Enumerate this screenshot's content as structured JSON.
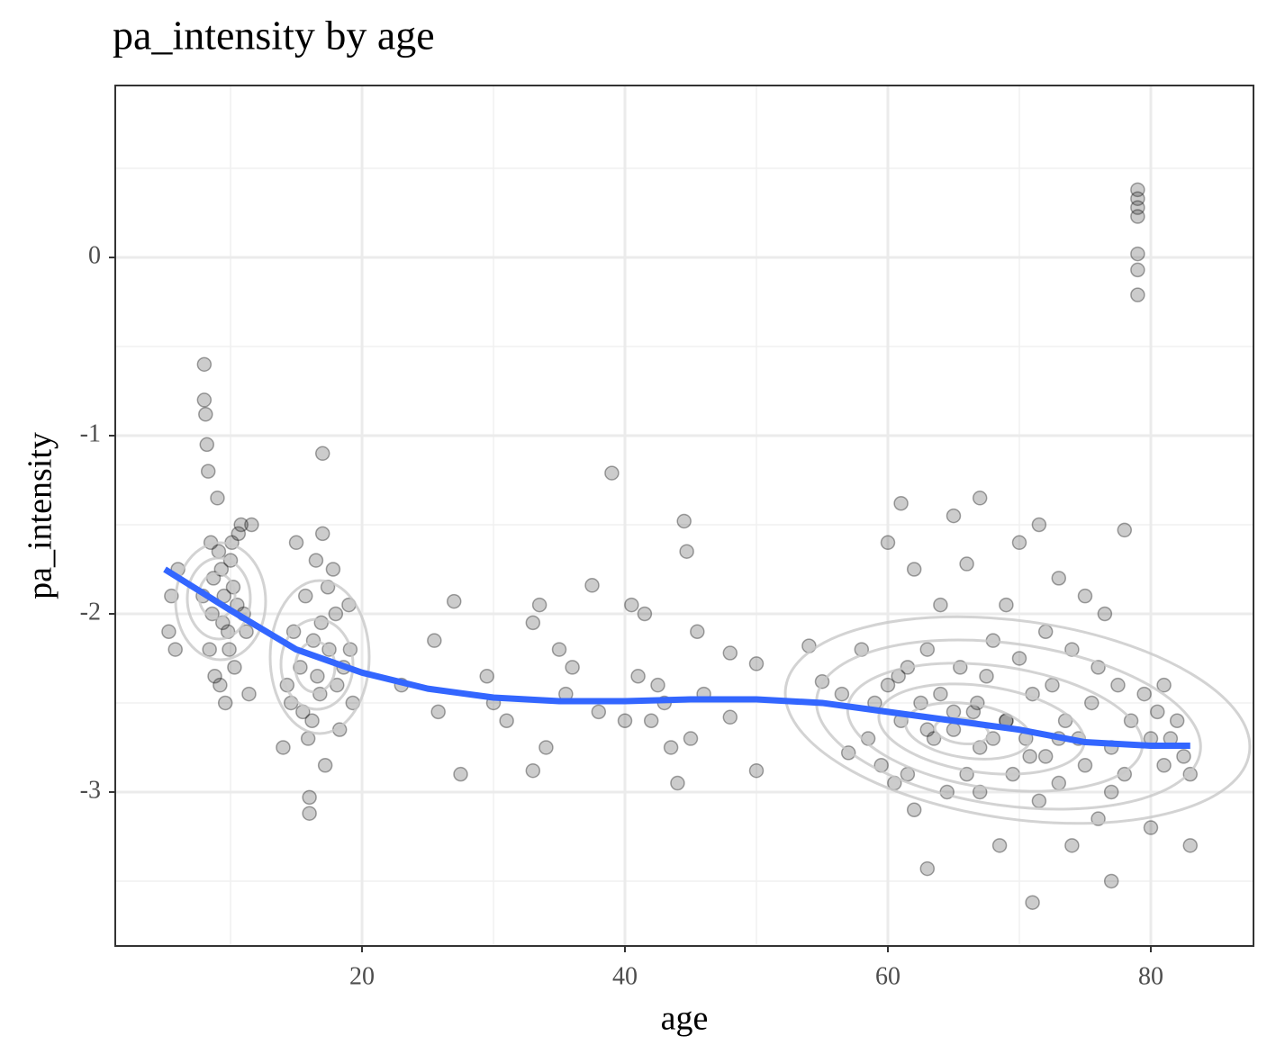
{
  "chart_data": {
    "type": "scatter",
    "title": "pa_intensity by age",
    "x_label": "age",
    "y_label": "pa_intensity",
    "xlim": [
      1.23,
      87.81
    ],
    "ylim": [
      -3.864,
      0.965
    ],
    "xticks": [
      20,
      40,
      60,
      80
    ],
    "yticks": [
      0,
      -1,
      -2,
      -3
    ],
    "grid": true,
    "point_color": "#000000",
    "x": [
      5.3,
      5.5,
      5.8,
      6,
      8,
      8,
      8.1,
      8.2,
      8.3,
      8.5,
      8.7,
      9,
      9.2,
      9.5,
      9.8,
      10,
      10.3,
      10.6,
      11,
      11.4,
      8.4,
      9.1,
      9.6,
      10.2,
      10.8,
      8.6,
      9.3,
      9.9,
      10.5,
      11.2,
      8.8,
      9.4,
      10.1,
      7.9,
      11.6,
      14,
      14.3,
      14.8,
      15,
      15.3,
      15.7,
      16,
      16,
      16.2,
      16.5,
      16.8,
      17,
      17,
      17.2,
      17.5,
      17.8,
      18,
      18.3,
      18.6,
      19,
      19.3,
      15.5,
      16.3,
      17.4,
      18.1,
      15.9,
      16.9,
      14.6,
      19.1,
      16.6,
      23,
      25.5,
      25.8,
      27,
      27.5,
      29.5,
      30,
      31,
      33,
      33.5,
      34,
      35,
      35.5,
      37.5,
      38,
      39,
      40,
      40.5,
      41,
      42,
      43,
      43.5,
      44,
      44.5,
      44.7,
      45,
      46,
      48,
      48,
      50,
      50,
      54,
      55,
      56.5,
      57,
      36,
      33,
      45.5,
      42.5,
      41.5,
      58,
      58.5,
      59,
      59.5,
      60,
      60,
      60.5,
      61,
      61,
      61.5,
      62,
      62,
      62.5,
      63,
      63,
      63.5,
      64,
      64,
      64.5,
      65,
      65,
      65.5,
      66,
      66,
      66.5,
      67,
      67,
      67.5,
      68,
      68,
      68.5,
      69,
      69,
      69.5,
      70,
      70,
      70.5,
      71,
      71,
      71.5,
      71.5,
      72,
      72,
      72.5,
      73,
      73,
      73.5,
      74,
      74,
      74.5,
      75,
      75,
      75.5,
      76,
      76,
      76.5,
      77,
      77,
      77.5,
      78,
      78,
      78.5,
      79,
      79,
      79,
      79,
      79,
      79,
      79,
      79.5,
      80,
      80,
      80.5,
      81,
      81,
      81.5,
      82,
      82.5,
      83,
      83,
      63,
      65,
      67,
      69,
      73,
      77,
      61.5,
      60.8,
      66.8,
      70.8
    ],
    "y": [
      -2.1,
      -1.9,
      -2.2,
      -1.75,
      -0.6,
      -0.8,
      -0.88,
      -1.05,
      -1.2,
      -1.6,
      -1.8,
      -1.35,
      -2.4,
      -1.9,
      -2.1,
      -1.7,
      -2.3,
      -1.55,
      -2.0,
      -2.45,
      -2.2,
      -1.65,
      -2.5,
      -1.85,
      -1.5,
      -2.0,
      -1.75,
      -2.2,
      -1.95,
      -2.1,
      -2.35,
      -2.05,
      -1.6,
      -1.9,
      -1.5,
      -2.75,
      -2.4,
      -2.1,
      -1.6,
      -2.3,
      -1.9,
      -3.03,
      -3.12,
      -2.6,
      -1.7,
      -2.45,
      -1.1,
      -1.55,
      -2.85,
      -2.2,
      -1.75,
      -2.0,
      -2.65,
      -2.3,
      -1.95,
      -2.5,
      -2.55,
      -2.15,
      -1.85,
      -2.4,
      -2.7,
      -2.05,
      -2.5,
      -2.2,
      -2.35,
      -2.4,
      -2.15,
      -2.55,
      -1.93,
      -2.9,
      -2.35,
      -2.5,
      -2.6,
      -2.88,
      -1.95,
      -2.75,
      -2.2,
      -2.45,
      -1.84,
      -2.55,
      -1.21,
      -2.6,
      -1.95,
      -2.35,
      -2.6,
      -2.5,
      -2.75,
      -2.95,
      -1.48,
      -1.65,
      -2.7,
      -2.45,
      -2.22,
      -2.58,
      -2.88,
      -2.28,
      -2.18,
      -2.38,
      -2.45,
      -2.78,
      -2.3,
      -2.05,
      -2.1,
      -2.4,
      -2.0,
      -2.2,
      -2.7,
      -2.5,
      -2.85,
      -1.6,
      -2.4,
      -2.95,
      -1.38,
      -2.6,
      -2.3,
      -1.75,
      -3.1,
      -2.5,
      -2.2,
      -3.43,
      -2.7,
      -1.95,
      -2.45,
      -3.0,
      -1.45,
      -2.65,
      -2.3,
      -1.72,
      -2.9,
      -2.55,
      -1.35,
      -3.0,
      -2.35,
      -2.7,
      -2.15,
      -3.3,
      -1.95,
      -2.6,
      -2.9,
      -2.25,
      -1.6,
      -2.7,
      -3.62,
      -2.45,
      -1.5,
      -3.05,
      -2.1,
      -2.8,
      -2.4,
      -1.8,
      -2.95,
      -2.6,
      -3.3,
      -2.2,
      -2.7,
      -1.9,
      -2.85,
      -2.5,
      -3.15,
      -2.3,
      -2.0,
      -2.75,
      -3.5,
      -2.4,
      -1.53,
      -2.9,
      -2.6,
      0.38,
      0.33,
      0.28,
      0.23,
      0.02,
      -0.07,
      -0.21,
      -2.45,
      -2.7,
      -3.2,
      -2.55,
      -2.85,
      -2.4,
      -2.7,
      -2.6,
      -2.8,
      -2.9,
      -3.3,
      -2.65,
      -2.55,
      -2.75,
      -2.6,
      -2.7,
      -3.0,
      -2.9,
      -2.35,
      -2.5,
      -2.8
    ],
    "smooth": {
      "color": "#3366ff",
      "x": [
        5,
        10,
        15,
        20,
        25,
        30,
        35,
        40,
        45,
        50,
        55,
        60,
        65,
        70,
        75,
        80,
        83
      ],
      "y": [
        -1.75,
        -1.98,
        -2.2,
        -2.33,
        -2.42,
        -2.47,
        -2.49,
        -2.49,
        -2.48,
        -2.48,
        -2.5,
        -2.55,
        -2.6,
        -2.65,
        -2.72,
        -2.74,
        -2.74
      ]
    }
  }
}
